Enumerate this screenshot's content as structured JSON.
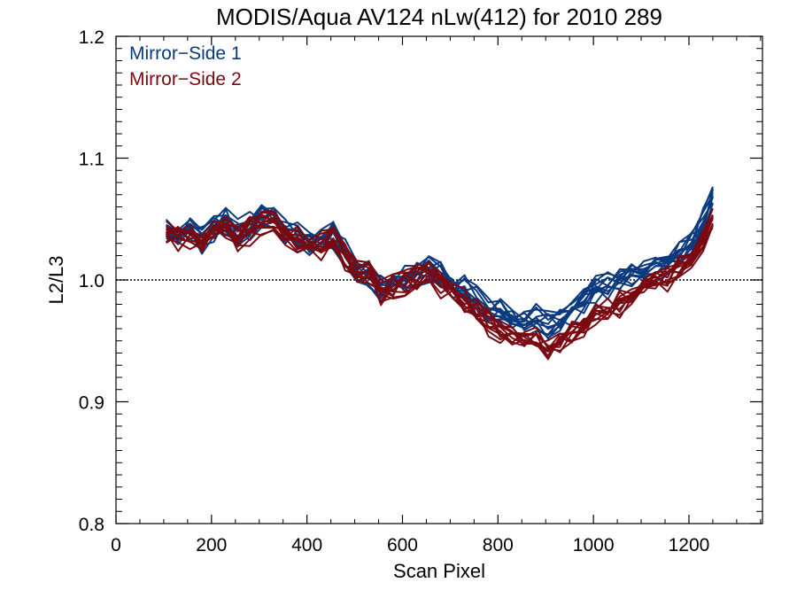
{
  "chart_data": {
    "type": "line",
    "title": "MODIS/Aqua AV124 nLw(412) for 2010 289",
    "xlabel": "Scan Pixel",
    "ylabel": "L2/L3",
    "xlim": [
      0,
      1354
    ],
    "ylim": [
      0.8,
      1.2
    ],
    "x_ticks": [
      0,
      200,
      400,
      600,
      800,
      1000,
      1200
    ],
    "y_ticks": [
      0.8,
      0.9,
      1.0,
      1.1,
      1.2
    ],
    "x_tick_labels": [
      "0",
      "200",
      "400",
      "600",
      "800",
      "1000",
      "1200"
    ],
    "y_tick_labels": [
      "0.8",
      "0.9",
      "1.0",
      "1.1",
      "1.2"
    ],
    "reference_line": {
      "y": 1.0,
      "style": "dotted"
    },
    "legend": {
      "placement": "top-left",
      "entries": [
        {
          "label": "Mirror−Side 1",
          "color": "#0b3a7e"
        },
        {
          "label": "Mirror−Side 2",
          "color": "#7a0a12"
        }
      ]
    },
    "x": [
      105,
      130,
      155,
      180,
      205,
      230,
      255,
      280,
      305,
      330,
      355,
      380,
      405,
      430,
      455,
      480,
      505,
      530,
      555,
      580,
      605,
      630,
      655,
      680,
      705,
      730,
      755,
      780,
      805,
      830,
      855,
      880,
      905,
      930,
      955,
      980,
      1005,
      1030,
      1055,
      1080,
      1105,
      1130,
      1155,
      1180,
      1205,
      1230,
      1250
    ],
    "base_trend": [
      1.04,
      1.036,
      1.038,
      1.032,
      1.042,
      1.046,
      1.036,
      1.042,
      1.05,
      1.052,
      1.04,
      1.035,
      1.032,
      1.03,
      1.036,
      1.022,
      1.008,
      1.005,
      0.992,
      0.996,
      1.0,
      1.004,
      1.008,
      1.002,
      0.995,
      0.99,
      0.98,
      0.974,
      0.968,
      0.962,
      0.958,
      0.962,
      0.956,
      0.958,
      0.965,
      0.972,
      0.98,
      0.985,
      0.99,
      0.994,
      0.998,
      1.004,
      1.008,
      1.015,
      1.025,
      1.04,
      1.06
    ],
    "series": [
      {
        "group": "Mirror-Side 1",
        "color": "#0b3a7e",
        "count": 12,
        "offset": [
          -0.004,
          0.006
        ],
        "values": [
          1.04,
          1.036,
          1.038,
          1.032,
          1.042,
          1.046,
          1.036,
          1.042,
          1.05,
          1.052,
          1.04,
          1.035,
          1.032,
          1.03,
          1.036,
          1.022,
          1.008,
          1.005,
          0.992,
          0.996,
          1.0,
          1.004,
          1.008,
          1.002,
          0.995,
          0.99,
          0.982,
          0.976,
          0.972,
          0.966,
          0.962,
          0.968,
          0.962,
          0.964,
          0.972,
          0.98,
          0.99,
          0.995,
          1.0,
          1.003,
          1.006,
          1.01,
          1.014,
          1.02,
          1.03,
          1.045,
          1.068
        ]
      },
      {
        "group": "Mirror-Side 2",
        "color": "#7a0a12",
        "count": 12,
        "offset": [
          -0.006,
          0.004
        ],
        "values": [
          1.04,
          1.036,
          1.038,
          1.032,
          1.042,
          1.046,
          1.036,
          1.042,
          1.05,
          1.052,
          1.04,
          1.035,
          1.032,
          1.03,
          1.036,
          1.022,
          1.008,
          1.005,
          0.992,
          0.996,
          1.0,
          1.004,
          1.006,
          0.998,
          0.99,
          0.984,
          0.976,
          0.968,
          0.962,
          0.956,
          0.952,
          0.954,
          0.948,
          0.95,
          0.958,
          0.964,
          0.972,
          0.978,
          0.982,
          0.988,
          0.994,
          1.0,
          1.004,
          1.012,
          1.022,
          1.036,
          1.056
        ]
      }
    ]
  }
}
